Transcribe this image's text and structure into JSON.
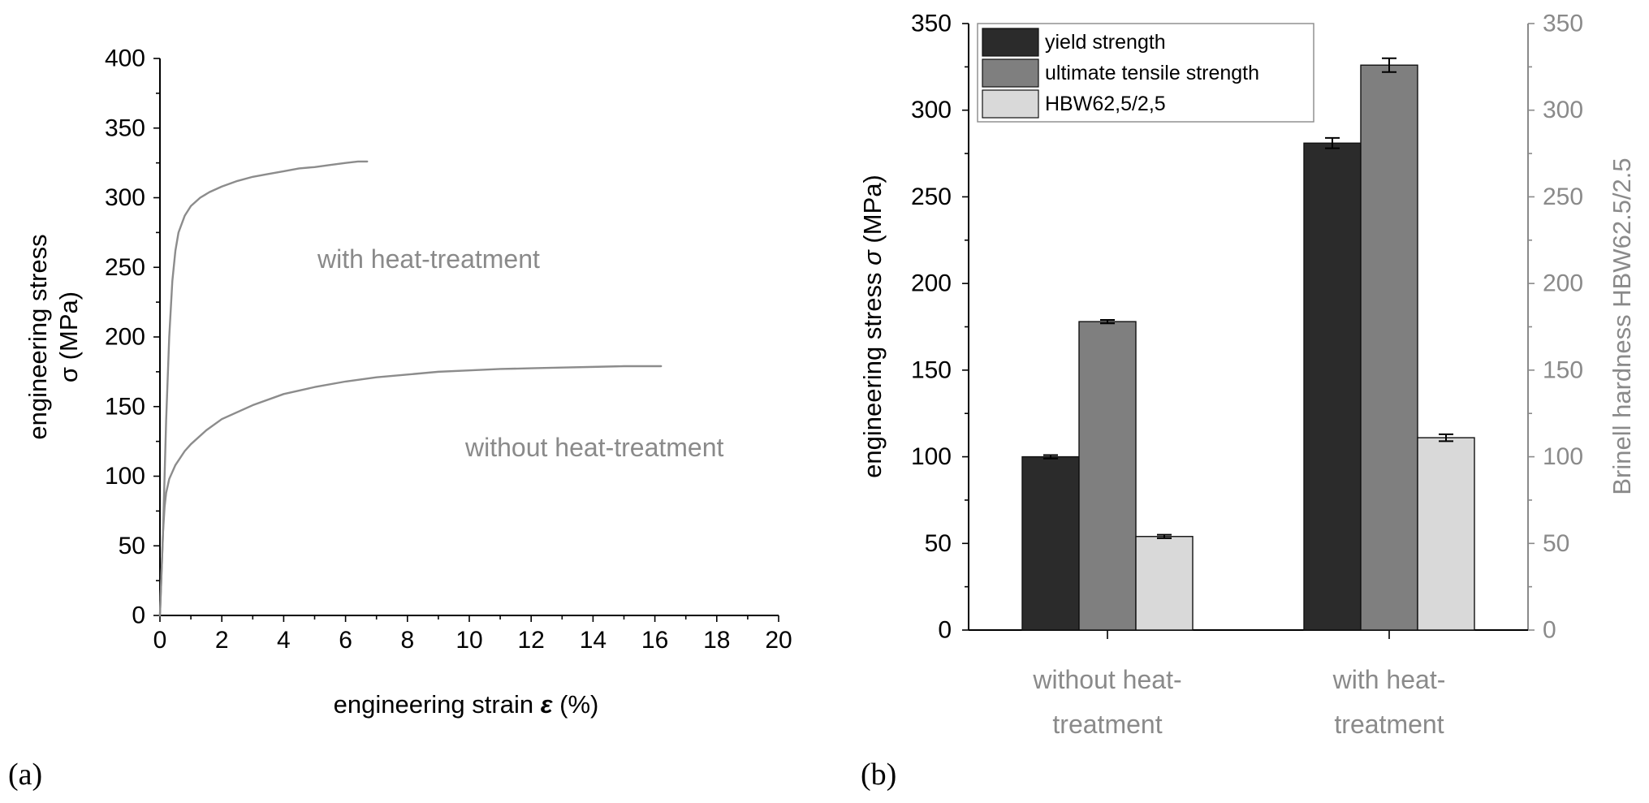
{
  "chart_data": [
    {
      "type": "line",
      "panel_label": "(a)",
      "title": "",
      "xlabel_parts": [
        "engineering strain ",
        "ε",
        " (%)"
      ],
      "ylabel_lines": [
        "engineering stress",
        "σ (MPa)"
      ],
      "xlim": [
        0,
        20
      ],
      "ylim": [
        0,
        400
      ],
      "x_ticks": [
        0,
        2,
        4,
        6,
        8,
        10,
        12,
        14,
        16,
        18,
        20
      ],
      "y_ticks": [
        0,
        50,
        100,
        150,
        200,
        250,
        300,
        350,
        400
      ],
      "grid": false,
      "series": [
        {
          "name": "with heat-treatment",
          "color": "#8c8c8c",
          "x": [
            0,
            0.1,
            0.2,
            0.3,
            0.4,
            0.5,
            0.6,
            0.8,
            1.0,
            1.3,
            1.6,
            2.0,
            2.5,
            3.0,
            3.5,
            4.0,
            4.5,
            5.0,
            5.5,
            6.0,
            6.4,
            6.7
          ],
          "y": [
            0,
            60,
            140,
            200,
            240,
            262,
            275,
            287,
            294,
            300,
            304,
            308,
            312,
            315,
            317,
            319,
            321,
            322,
            323.5,
            325,
            326,
            326
          ]
        },
        {
          "name": "without heat-treatment",
          "color": "#8c8c8c",
          "x": [
            0,
            0.05,
            0.1,
            0.15,
            0.2,
            0.3,
            0.5,
            0.8,
            1.0,
            1.5,
            2.0,
            3.0,
            4.0,
            5.0,
            6.0,
            7.0,
            8.0,
            9.0,
            10.0,
            11.0,
            12.0,
            13.0,
            14.0,
            15.0,
            16.2
          ],
          "y": [
            0,
            30,
            60,
            78,
            88,
            98,
            108,
            118,
            123,
            133,
            141,
            151,
            159,
            164,
            168,
            171,
            173,
            175,
            176,
            177,
            177.5,
            178,
            178.5,
            179,
            179
          ]
        }
      ],
      "annotations": [
        "with heat-treatment",
        "without heat-treatment"
      ]
    },
    {
      "type": "bar",
      "panel_label": "(b)",
      "title": "",
      "categories_lines": [
        [
          "without heat-",
          "treatment"
        ],
        [
          "with heat-",
          "treatment"
        ]
      ],
      "ylabel_parts": [
        "engineering stress ",
        "σ",
        " (MPa)"
      ],
      "y2label": "Brinell hardness HBW62.5/2.5",
      "ylim": [
        0,
        350
      ],
      "y2lim": [
        0,
        350
      ],
      "y_ticks": [
        0,
        50,
        100,
        150,
        200,
        250,
        300,
        350
      ],
      "y2_ticks": [
        0,
        50,
        100,
        150,
        200,
        250,
        300,
        350
      ],
      "grid": false,
      "legend": "top-left",
      "series": [
        {
          "name": "yield strength",
          "axis": "left",
          "color": "#2b2b2b",
          "values": [
            100,
            281
          ],
          "errors": [
            1,
            3
          ]
        },
        {
          "name": "ultimate tensile strength",
          "axis": "left",
          "color": "#7f7f7f",
          "values": [
            178,
            326
          ],
          "errors": [
            1,
            4
          ]
        },
        {
          "name": "HBW62,5/2,5",
          "axis": "right",
          "color": "#d9d9d9",
          "values": [
            54,
            111
          ],
          "errors": [
            1,
            2
          ]
        }
      ]
    }
  ]
}
